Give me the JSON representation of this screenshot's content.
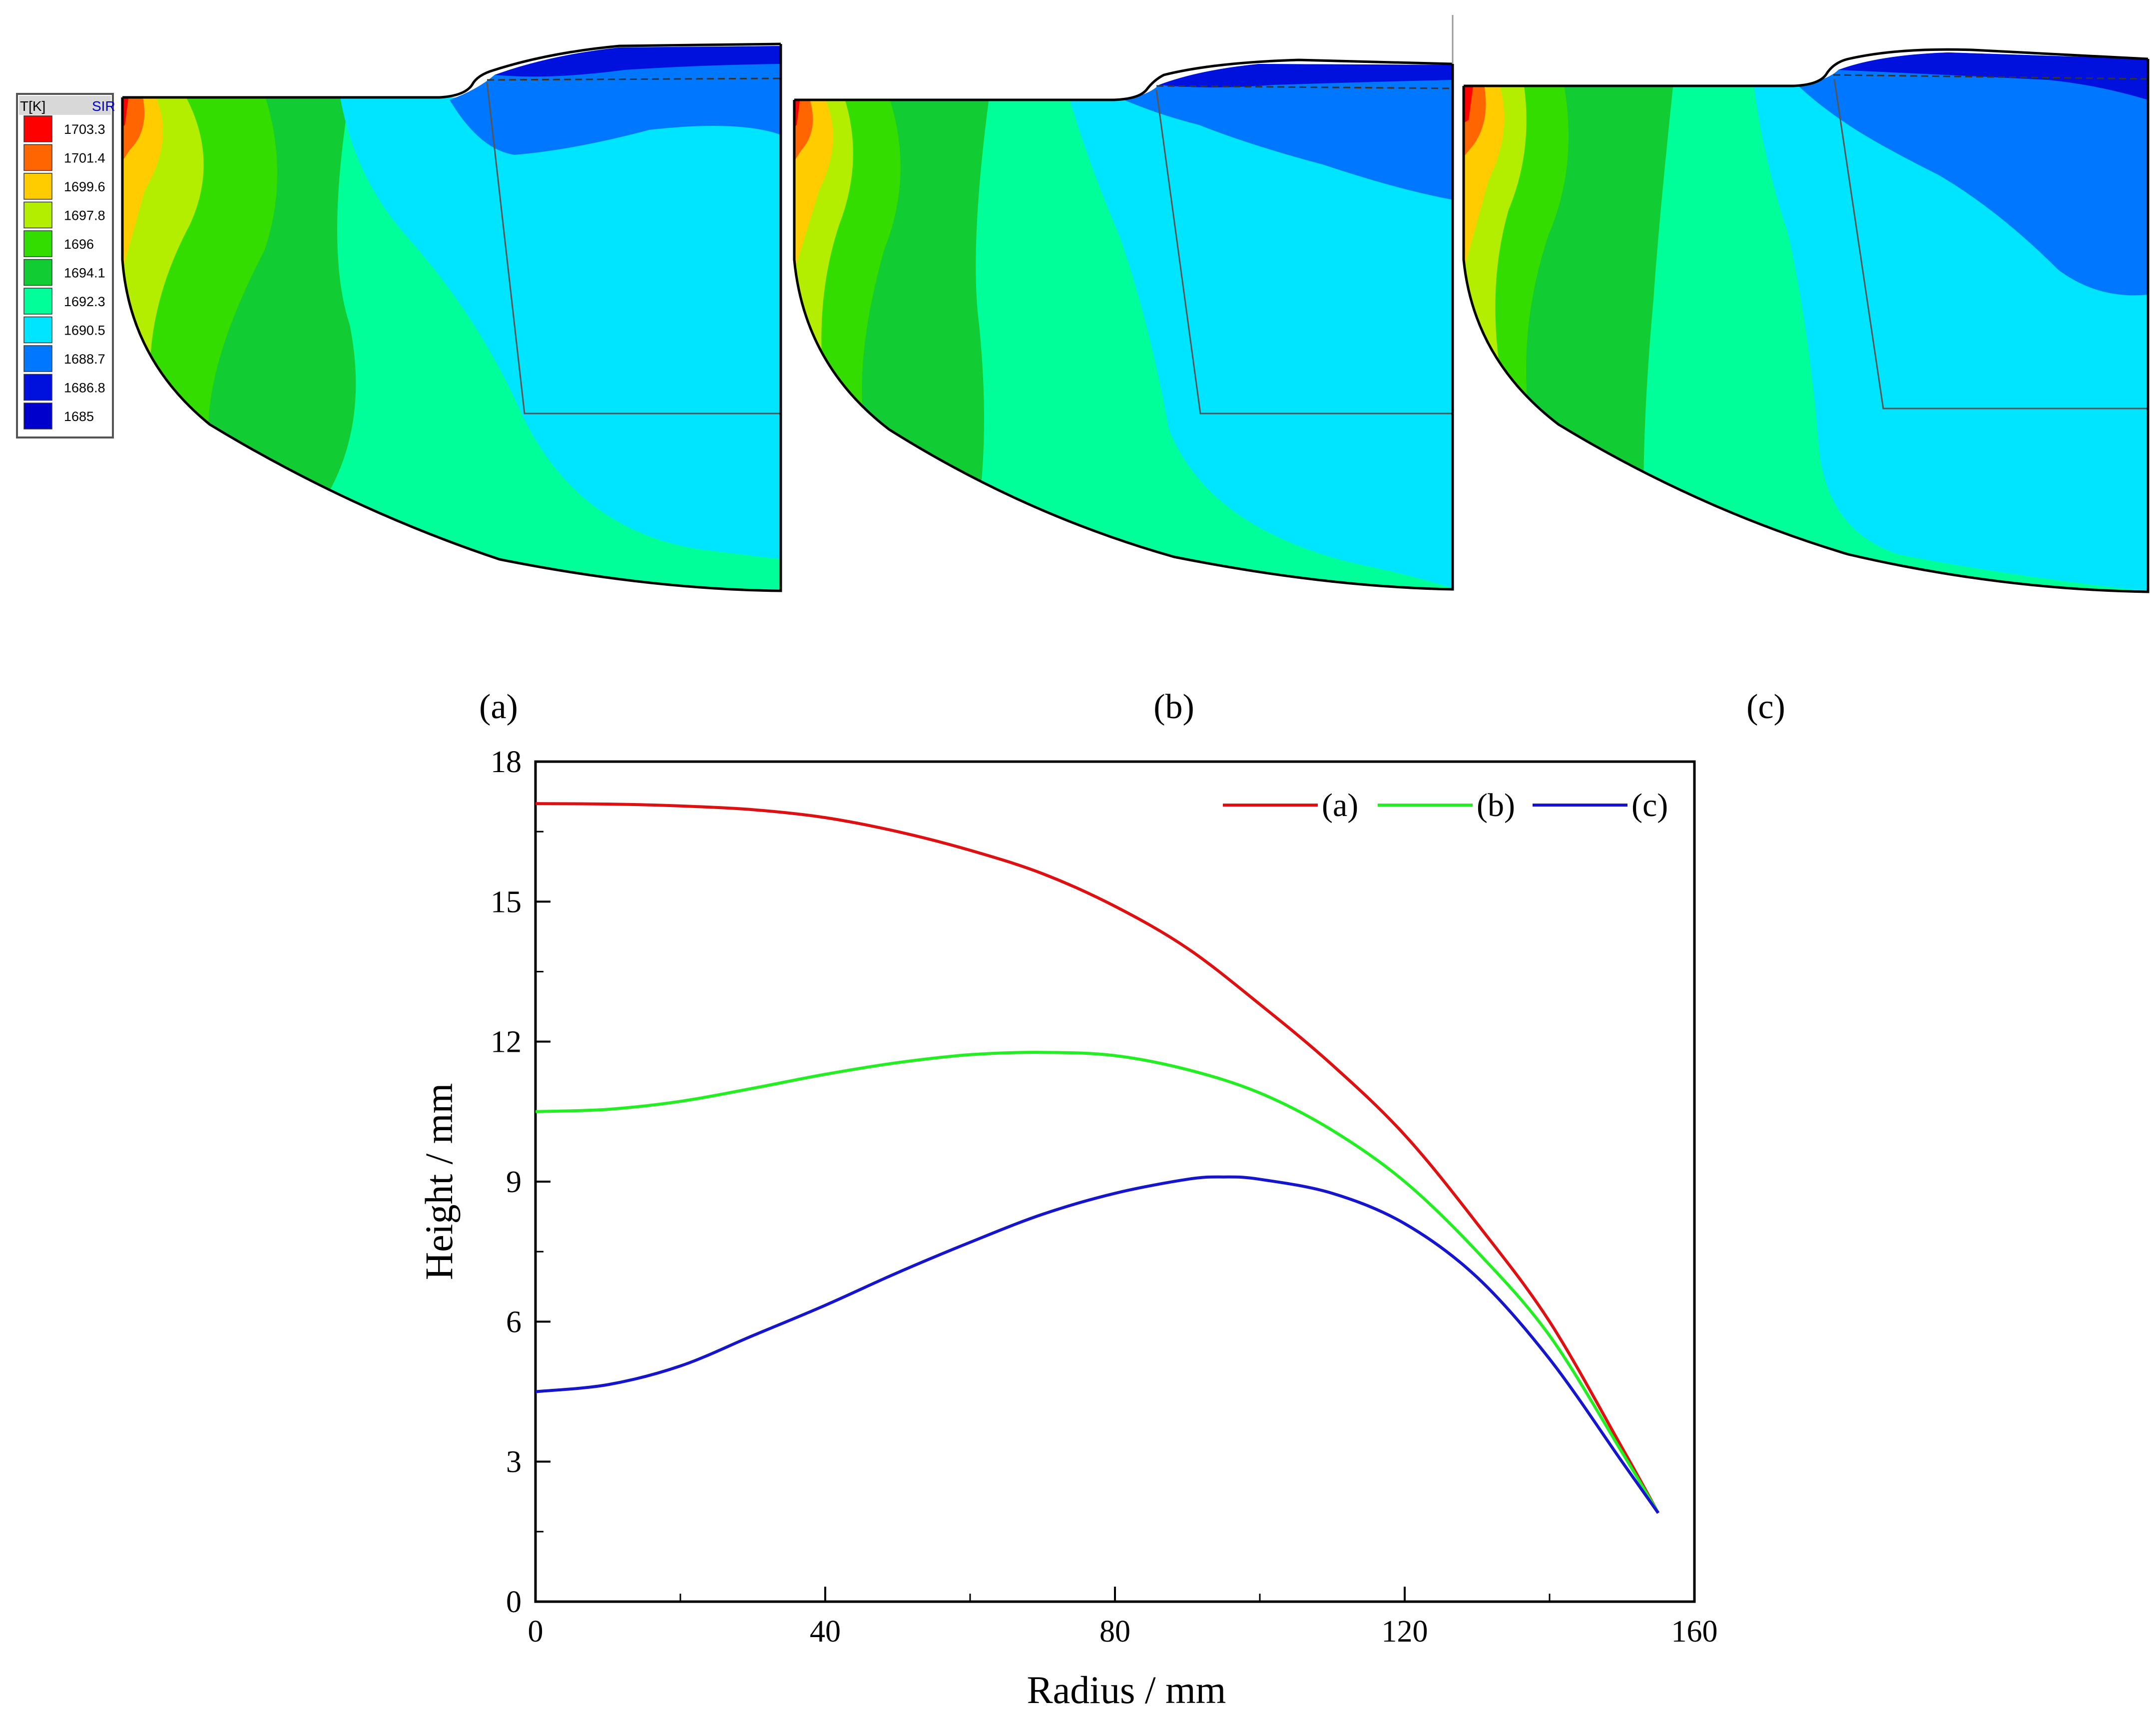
{
  "figure": {
    "panel_captions": [
      "(a)",
      "(b)",
      "(c)"
    ]
  },
  "legend_box": {
    "header_left": "T[K]",
    "header_right": "SIR",
    "entries": [
      {
        "label": "1703.3",
        "color": "#ff0000"
      },
      {
        "label": "1701.4",
        "color": "#ff6600"
      },
      {
        "label": "1699.6",
        "color": "#ffcc00"
      },
      {
        "label": "1697.8",
        "color": "#b3ee00"
      },
      {
        "label": "1696",
        "color": "#33dd00"
      },
      {
        "label": "1694.1",
        "color": "#11cc33"
      },
      {
        "label": "1692.3",
        "color": "#00ff99"
      },
      {
        "label": "1690.5",
        "color": "#00e5ff"
      },
      {
        "label": "1688.7",
        "color": "#0077ff"
      },
      {
        "label": "1686.8",
        "color": "#0011dd"
      },
      {
        "label": "1685",
        "color": "#0000cc"
      }
    ]
  },
  "panels": [
    {
      "caption": "(a)"
    },
    {
      "caption": "(b)"
    },
    {
      "caption": "(c)"
    }
  ],
  "chart_data": {
    "type": "line",
    "title": "",
    "xlabel": "Radius / mm",
    "ylabel": "Height / mm",
    "xlim": [
      0,
      160
    ],
    "ylim": [
      0,
      18
    ],
    "xticks": [
      "0",
      "40",
      "80",
      "120",
      "160"
    ],
    "yticks": [
      "0",
      "3",
      "6",
      "9",
      "12",
      "15",
      "18"
    ],
    "legend_position": "top-right",
    "series": [
      {
        "name": "(a)",
        "color": "#dd1111",
        "x": [
          0,
          10,
          20,
          30,
          40,
          50,
          60,
          70,
          80,
          90,
          100,
          110,
          120,
          130,
          140,
          150,
          155
        ],
        "y": [
          17.1,
          17.09,
          17.05,
          16.97,
          16.8,
          16.5,
          16.1,
          15.6,
          14.9,
          14.0,
          12.8,
          11.5,
          10.0,
          8.1,
          6.0,
          3.3,
          1.9
        ]
      },
      {
        "name": "(b)",
        "color": "#22ee22",
        "x": [
          0,
          10,
          20,
          30,
          40,
          50,
          60,
          70,
          80,
          90,
          100,
          110,
          120,
          130,
          140,
          150,
          155
        ],
        "y": [
          10.5,
          10.55,
          10.72,
          11.0,
          11.3,
          11.55,
          11.72,
          11.77,
          11.7,
          11.4,
          10.9,
          10.1,
          9.0,
          7.5,
          5.7,
          3.2,
          1.9
        ]
      },
      {
        "name": "(c)",
        "color": "#1515cc",
        "x": [
          0,
          10,
          20,
          30,
          40,
          50,
          60,
          70,
          80,
          90,
          95,
          100,
          110,
          120,
          130,
          140,
          150,
          155
        ],
        "y": [
          4.5,
          4.65,
          5.05,
          5.7,
          6.35,
          7.05,
          7.7,
          8.3,
          8.75,
          9.05,
          9.1,
          9.05,
          8.75,
          8.1,
          6.95,
          5.2,
          3.0,
          1.9
        ]
      }
    ]
  }
}
